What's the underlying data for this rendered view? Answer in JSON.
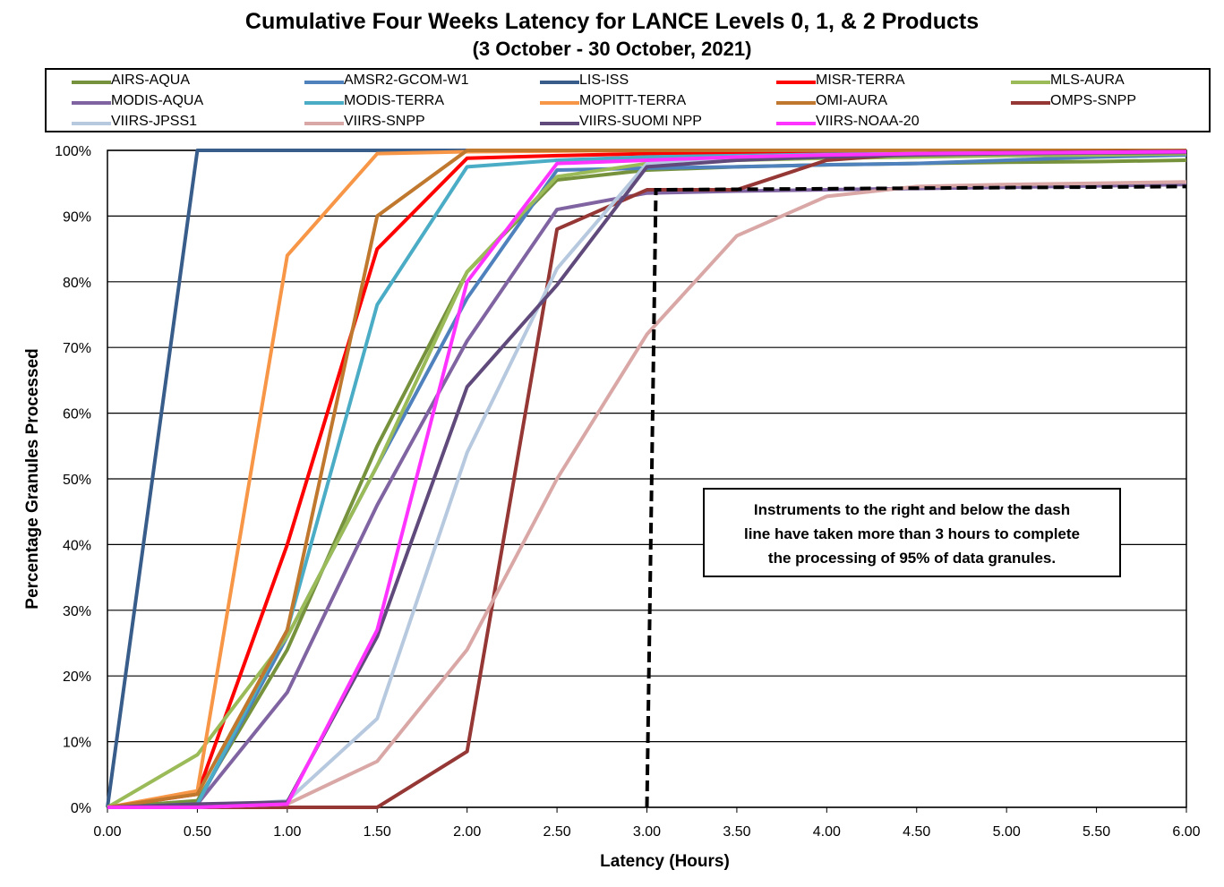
{
  "title": "Cumulative Four Weeks Latency  for LANCE Levels 0, 1, & 2 Products",
  "subtitle": "(3  October   -  30  October,  2021)",
  "note_lines": [
    "Instruments to the right and below the dash",
    "line have taken more than 3 hours to complete",
    "the processing of 95% of data granules."
  ],
  "chart_data": {
    "type": "line",
    "title": "Cumulative Four Weeks Latency  for LANCE Levels 0, 1, & 2 Products",
    "subtitle": "(3  October   -  30  October,  2021)",
    "xlabel": "Latency (Hours)",
    "ylabel": "Percentage Granules Processed",
    "xlim": [
      0,
      6
    ],
    "ylim": [
      0,
      100
    ],
    "x_ticks": [
      "0.00",
      "0.50",
      "1.00",
      "1.50",
      "2.00",
      "2.50",
      "3.00",
      "3.50",
      "4.00",
      "4.50",
      "5.00",
      "5.50",
      "6.00"
    ],
    "y_ticks": [
      "0%",
      "10%",
      "20%",
      "30%",
      "40%",
      "50%",
      "60%",
      "70%",
      "80%",
      "90%",
      "100%"
    ],
    "grid": "horizontal",
    "legend": "top",
    "x": [
      0,
      0.5,
      1.0,
      1.5,
      2.0,
      2.5,
      3.0,
      3.5,
      4.0,
      4.5,
      5.0,
      5.5,
      6.0
    ],
    "series": [
      {
        "name": "AIRS-AQUA",
        "color": "#76923C",
        "values": [
          0,
          1,
          24,
          55,
          81.5,
          95.5,
          97,
          97.5,
          97.8,
          98,
          98.2,
          98.3,
          98.5
        ]
      },
      {
        "name": "AMSR2-GCOM-W1",
        "color": "#4F81BD",
        "values": [
          0,
          0.5,
          26,
          52,
          77.5,
          97,
          97.3,
          97.5,
          97.8,
          98,
          98.5,
          99,
          99.3
        ]
      },
      {
        "name": "LIS-ISS",
        "color": "#385D8A",
        "values": [
          0,
          100,
          100,
          100,
          100,
          100,
          100,
          100,
          100,
          100,
          100,
          100,
          100
        ]
      },
      {
        "name": "MISR-TERRA",
        "color": "#FF0000",
        "values": [
          0,
          2,
          40,
          85,
          98.8,
          99.2,
          99.5,
          99.7,
          99.8,
          99.9,
          100,
          100,
          100
        ]
      },
      {
        "name": "MLS-AURA",
        "color": "#9BBB59",
        "values": [
          0,
          8,
          26,
          52,
          81.5,
          96,
          98,
          98.5,
          98.8,
          99,
          99.2,
          99.3,
          99.5
        ]
      },
      {
        "name": "MODIS-AQUA",
        "color": "#8064A2",
        "values": [
          0,
          0.5,
          17.5,
          46,
          71,
          91,
          93.5,
          93.8,
          94,
          94.2,
          94.4,
          94.6,
          94.8
        ]
      },
      {
        "name": "MODIS-TERRA",
        "color": "#4BACC6",
        "values": [
          0,
          0.5,
          27,
          76.5,
          97.5,
          98.5,
          99,
          99.2,
          99.4,
          99.5,
          99.6,
          99.7,
          99.8
        ]
      },
      {
        "name": "MOPITT-TERRA",
        "color": "#F79646",
        "values": [
          0,
          2.5,
          84,
          99.5,
          99.8,
          99.9,
          100,
          100,
          100,
          100,
          100,
          100,
          100
        ]
      },
      {
        "name": "OMI-AURA",
        "color": "#C0782E",
        "values": [
          0,
          2,
          27,
          90,
          100,
          100,
          100,
          100,
          100,
          100,
          100,
          100,
          100
        ]
      },
      {
        "name": "OMPS-SNPP",
        "color": "#953735",
        "values": [
          0,
          0,
          0,
          0,
          8.5,
          88,
          94,
          94,
          98.5,
          99.5,
          99.7,
          99.8,
          99.9
        ]
      },
      {
        "name": "VIIRS-JPSS1",
        "color": "#B7C9DF",
        "values": [
          0,
          0,
          1,
          13.5,
          54,
          82,
          98,
          99,
          99.3,
          99.5,
          99.6,
          99.7,
          99.8
        ]
      },
      {
        "name": "VIIRS-SNPP",
        "color": "#D9A8A6",
        "values": [
          0,
          0,
          0.5,
          7,
          24,
          50,
          72,
          87,
          93,
          94.5,
          94.8,
          95,
          95.2
        ]
      },
      {
        "name": "VIIRS-SUOMI NPP",
        "color": "#604A7B",
        "values": [
          0,
          0.5,
          0.8,
          26,
          64,
          79.5,
          97.5,
          98.5,
          99,
          99.3,
          99.5,
          99.6,
          99.7
        ]
      },
      {
        "name": "VIIRS-NOAA-20",
        "color": "#FF33FF",
        "values": [
          0,
          0,
          0.5,
          27,
          80,
          98,
          98.5,
          99,
          99.3,
          99.5,
          99.6,
          99.7,
          99.8
        ]
      }
    ],
    "threshold_line": {
      "x": [
        3.0,
        3.05,
        6.0
      ],
      "y": [
        0,
        94,
        94.5
      ],
      "style": "dashed",
      "color": "#000000"
    }
  }
}
